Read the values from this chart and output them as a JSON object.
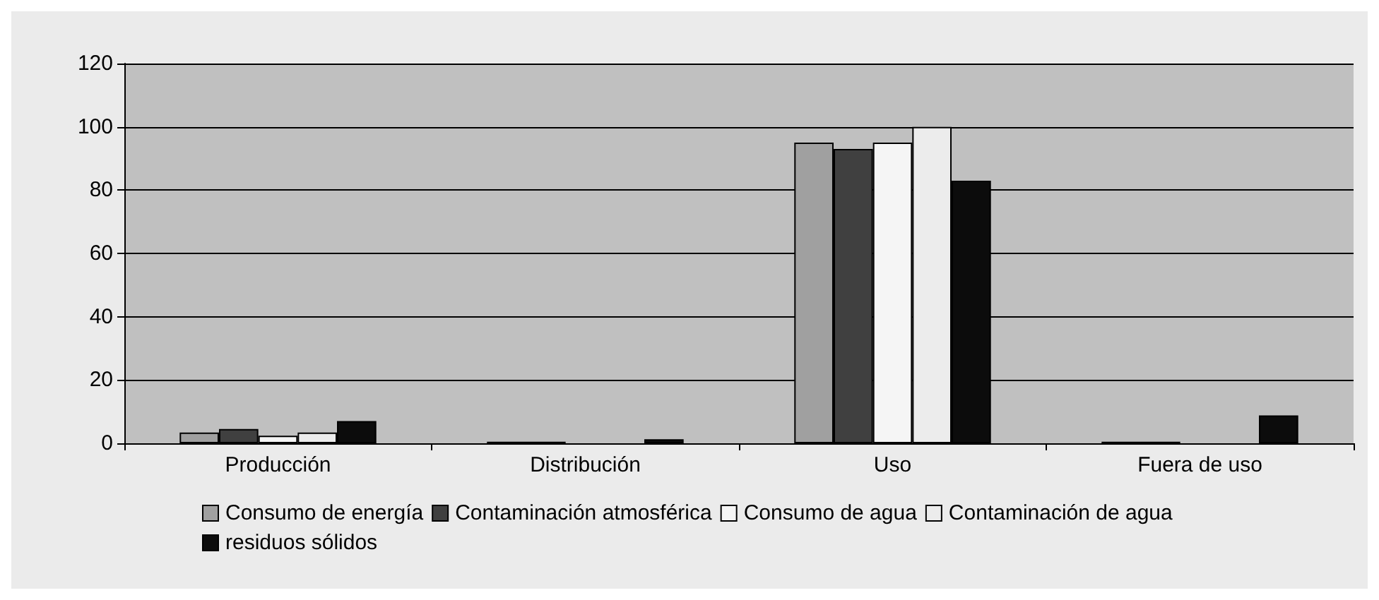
{
  "chart_data": {
    "type": "bar",
    "categories": [
      "Producción",
      "Distribución",
      "Uso",
      "Fuera de uso"
    ],
    "series": [
      {
        "name": "Consumo de energía",
        "color": "#a0a0a0",
        "values": [
          3.4,
          0.5,
          95,
          0.5
        ]
      },
      {
        "name": "Contaminación atmosférica",
        "color": "#404040",
        "values": [
          4.5,
          0.5,
          93,
          0.5
        ]
      },
      {
        "name": "Consumo de agua",
        "color": "#f5f5f5",
        "values": [
          2.4,
          null,
          95,
          null
        ]
      },
      {
        "name": "Contaminación de agua",
        "color": "#ececec",
        "values": [
          3.4,
          null,
          100,
          null
        ]
      },
      {
        "name": "residuos sólidos",
        "color": "#0c0c0c",
        "values": [
          7,
          1.3,
          83,
          8.8
        ]
      }
    ],
    "ylim": [
      0,
      120
    ],
    "yticks": [
      0,
      20,
      40,
      60,
      80,
      100,
      120
    ],
    "grid": "y",
    "legend": "bottom"
  }
}
